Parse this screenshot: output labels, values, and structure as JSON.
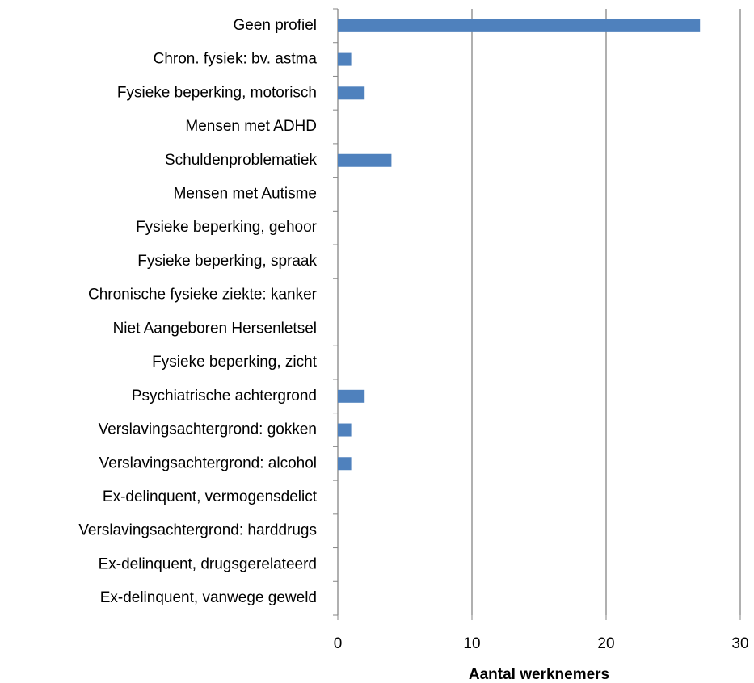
{
  "chart_data": {
    "type": "barh",
    "categories": [
      "Geen profiel",
      "Chron. fysiek: bv. astma",
      "Fysieke beperking, motorisch",
      "Mensen met ADHD",
      "Schuldenproblematiek",
      "Mensen met Autisme",
      "Fysieke beperking, gehoor",
      "Fysieke beperking, spraak",
      "Chronische fysieke ziekte: kanker",
      "Niet Aangeboren Hersenletsel",
      "Fysieke beperking, zicht",
      "Psychiatrische achtergrond",
      "Verslavingsachtergrond: gokken",
      "Verslavingsachtergrond: alcohol",
      "Ex-delinquent, vermogensdelict",
      "Verslavingsachtergrond: harddrugs",
      "Ex-delinquent, drugsgerelateerd",
      "Ex-delinquent, vanwege geweld"
    ],
    "values": [
      27,
      1,
      2,
      0,
      4,
      0,
      0,
      0,
      0,
      0,
      0,
      2,
      1,
      1,
      0,
      0,
      0,
      0
    ],
    "color": "#4f81bd",
    "xlabel": "Aantal werknemers",
    "xlim": [
      0,
      30
    ],
    "xticks": [
      0,
      10,
      20,
      30
    ],
    "grid": true
  }
}
